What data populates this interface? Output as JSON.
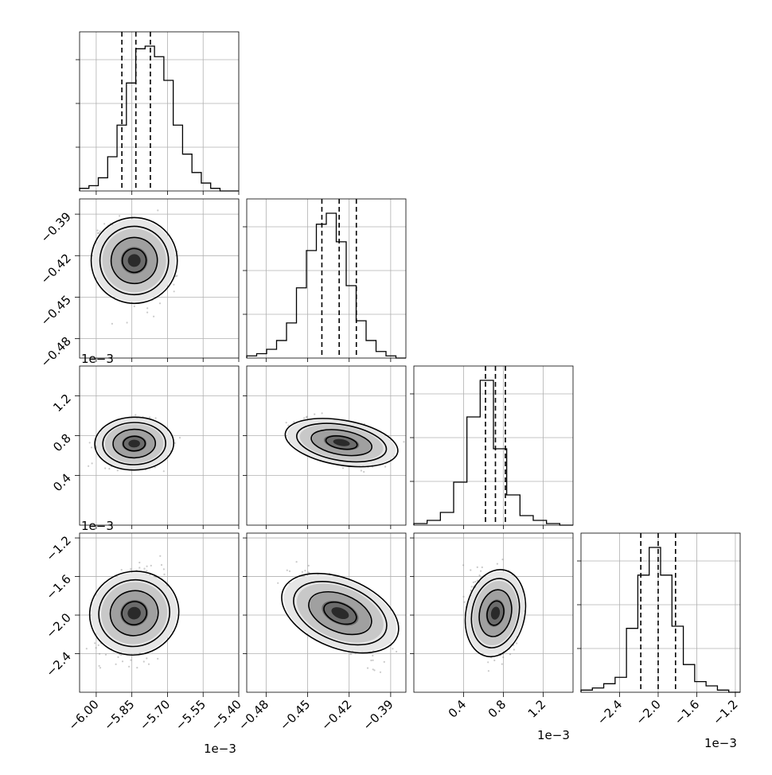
{
  "chart_data": {
    "type": "corner",
    "title": "",
    "parameters": 4,
    "axes": [
      {
        "range": [
          -6.07,
          -5.4
        ],
        "ticks": [
          -6.0,
          -5.85,
          -5.7,
          -5.55,
          -5.4
        ],
        "tick_labels": [
          "−6.00",
          "−5.85",
          "−5.70",
          "−5.55",
          "−5.40"
        ],
        "offset_label": "1e−3",
        "median": -5.833,
        "q16": -5.892,
        "q84": -5.772
      },
      {
        "range": [
          -0.494,
          -0.379
        ],
        "ticks": [
          -0.48,
          -0.45,
          -0.42,
          -0.39
        ],
        "tick_labels": [
          "−0.48",
          "−0.45",
          "−0.42",
          "−0.39"
        ],
        "offset_label": "1e−3",
        "median": -0.4272,
        "q16": -0.4397,
        "q84": -0.4148
      },
      {
        "range": [
          -0.1,
          1.5
        ],
        "ticks": [
          0.4,
          0.8,
          1.2
        ],
        "tick_labels": [
          "0.4",
          "0.8",
          "1.2"
        ],
        "offset_label": "1e−3",
        "median": 0.72,
        "q16": 0.62,
        "q84": 0.82
      },
      {
        "range": [
          -2.8,
          -1.15
        ],
        "ticks": [
          -2.4,
          -2.0,
          -1.6,
          -1.2
        ],
        "tick_labels": [
          "−2.4",
          "−2.0",
          "−1.6",
          "−1.2"
        ],
        "offset_label": "1e−3",
        "median": -2.0,
        "q16": -2.18,
        "q84": -1.82
      }
    ],
    "histograms": [
      {
        "param": 0,
        "counts": [
          1,
          2,
          5,
          13,
          25,
          41,
          54,
          55,
          51,
          42,
          25,
          14,
          7,
          3,
          1,
          0,
          0
        ]
      },
      {
        "param": 1,
        "counts": [
          1,
          2,
          4,
          8,
          16,
          32,
          49,
          61,
          66,
          53,
          33,
          17,
          8,
          3,
          1,
          0
        ]
      },
      {
        "param": 2,
        "counts": [
          1,
          3,
          8,
          27,
          68,
          91,
          48,
          19,
          6,
          3,
          1,
          0
        ]
      },
      {
        "param": 3,
        "counts": [
          1,
          2,
          4,
          7,
          30,
          55,
          68,
          55,
          31,
          13,
          5,
          3,
          1,
          0
        ]
      }
    ],
    "pairs": [
      {
        "x": 0,
        "y": 1,
        "center": [
          -5.84,
          -0.4235
        ],
        "rho": -0.25
      },
      {
        "x": 0,
        "y": 2,
        "center": [
          -5.84,
          0.72
        ],
        "rho": 0.05
      },
      {
        "x": 1,
        "y": 2,
        "center": [
          -0.4255,
          0.73
        ],
        "rho": -0.5
      },
      {
        "x": 0,
        "y": 3,
        "center": [
          -5.84,
          -1.98
        ],
        "rho": 0.35
      },
      {
        "x": 1,
        "y": 3,
        "center": [
          -0.4265,
          -1.98
        ],
        "rho": -0.75
      },
      {
        "x": 2,
        "y": 3,
        "center": [
          0.72,
          -1.98
        ],
        "rho": -0.2
      }
    ],
    "grid": true
  }
}
